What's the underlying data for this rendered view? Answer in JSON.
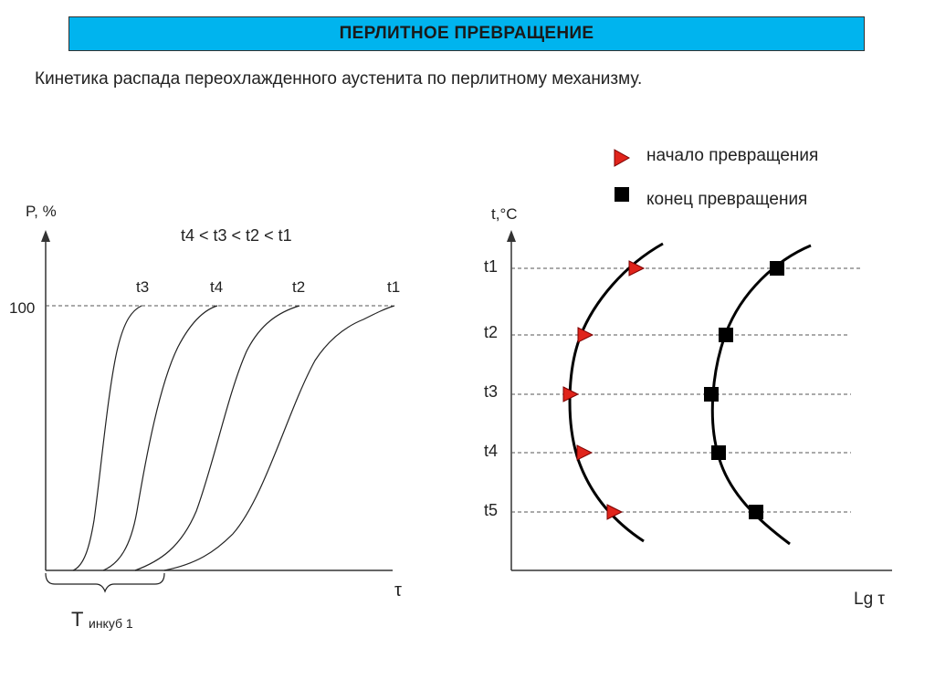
{
  "header": {
    "title": "ПЕРЛИТНОЕ ПРЕВРАЩЕНИЕ",
    "subtitle": "Кинетика распада переохлажденного аустенита по перлитному механизму."
  },
  "left_chart": {
    "y_axis_label": "P, %",
    "y_tick_100": "100",
    "x_axis_label": "τ",
    "relation": "t4 < t3 < t2 < t1",
    "curve_labels": [
      "t3",
      "t4",
      "t2",
      "t1"
    ],
    "incubation_label_main": "T",
    "incubation_label_sub": "инкуб 1"
  },
  "right_chart": {
    "y_axis_label": "t,°C",
    "x_axis_label": "Lg τ",
    "levels": [
      "t1",
      "t2",
      "t3",
      "t4",
      "t5"
    ],
    "legend": {
      "start_label": "начало превращения",
      "end_label": "конец превращения"
    },
    "colors": {
      "start_marker": "#e0241b",
      "end_marker": "#000000"
    }
  }
}
